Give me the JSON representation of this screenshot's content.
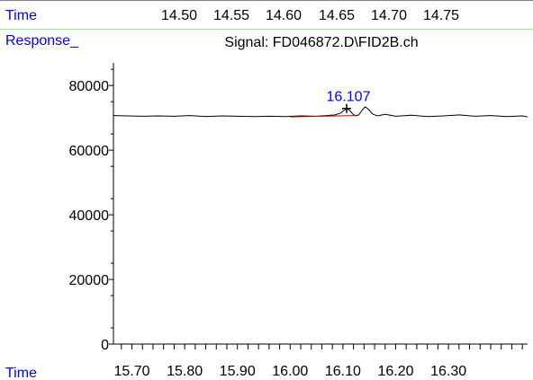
{
  "header": {
    "time_label": "Time",
    "prev_panel_ticks": [
      "14.50",
      "14.55",
      "14.60",
      "14.65",
      "14.70",
      "14.75"
    ]
  },
  "response_label": "Response_",
  "bottom_time_label": "Time",
  "colors": {
    "label_blue": "#0000ff",
    "header_border": "#90ee90",
    "trace": "#000000",
    "baseline": "#cc0000",
    "peak_label": "#0000ff"
  },
  "chart_data": {
    "type": "line",
    "title": "Signal: FD046872.D\\FID2B.ch",
    "xlabel": "Time",
    "ylabel": "Response_",
    "xlim": [
      15.665,
      16.45
    ],
    "ylim": [
      0,
      87000
    ],
    "x_ticks": [
      "15.70",
      "15.80",
      "15.90",
      "16.00",
      "16.10",
      "16.20",
      "16.30"
    ],
    "y_ticks": [
      "0",
      "20000",
      "40000",
      "60000",
      "80000"
    ],
    "series": [
      {
        "x": [
          15.665,
          15.69,
          15.72,
          15.75,
          15.78,
          15.81,
          15.84,
          15.87,
          15.9,
          15.93,
          15.96,
          15.99,
          16.02,
          16.05,
          16.07,
          16.085,
          16.095,
          16.102,
          16.107,
          16.112,
          16.118,
          16.124,
          16.13,
          16.136,
          16.142,
          16.148,
          16.156,
          16.165,
          16.18,
          16.2,
          16.23,
          16.26,
          16.29,
          16.32,
          16.35,
          16.38,
          16.41,
          16.44,
          16.45
        ],
        "values": [
          70700,
          70600,
          70500,
          70600,
          70500,
          70700,
          70400,
          70600,
          70500,
          70400,
          70500,
          70400,
          70600,
          70500,
          70700,
          70900,
          71400,
          72300,
          72900,
          72400,
          71300,
          70600,
          70900,
          72300,
          73400,
          72700,
          71200,
          70600,
          71100,
          70500,
          70800,
          70400,
          70600,
          70900,
          70500,
          70700,
          70400,
          70600,
          70300
        ]
      }
    ],
    "integration_baseline": {
      "x": [
        16.0,
        16.125
      ],
      "values": [
        70300,
        70700
      ]
    },
    "peak": {
      "label": "16.107",
      "x": 16.107,
      "y": 72900
    }
  }
}
